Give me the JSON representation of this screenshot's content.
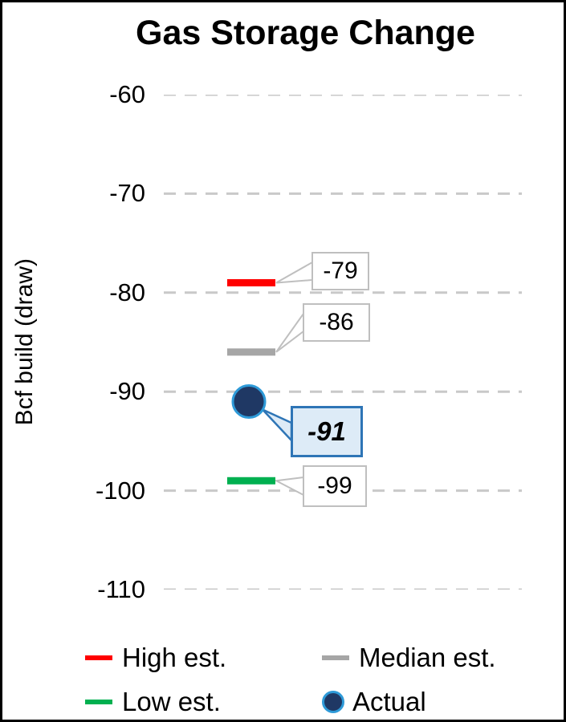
{
  "title": "Gas Storage Change",
  "chart_data": {
    "type": "scatter",
    "title": "Gas Storage Change",
    "ylabel": "Bcf build (draw)",
    "ylim": [
      -110,
      -60
    ],
    "yticks": [
      -60,
      -70,
      -80,
      -90,
      -100,
      -110
    ],
    "grid": "dashed-horizontal",
    "legend_position": "bottom",
    "series": [
      {
        "name": "High est.",
        "marker": "dash",
        "color": "#FF0000",
        "value": -79,
        "label": "-79"
      },
      {
        "name": "Median est.",
        "marker": "dash",
        "color": "#A6A6A6",
        "value": -86,
        "label": "-86"
      },
      {
        "name": "Actual",
        "marker": "circle",
        "color": "#1F3864",
        "value": -91,
        "label": "-91"
      },
      {
        "name": "Low est.",
        "marker": "dash",
        "color": "#00B050",
        "value": -99,
        "label": "-99"
      }
    ]
  },
  "legend": {
    "items": [
      {
        "label": "High est.",
        "marker": "dash",
        "color": "#FF0000"
      },
      {
        "label": "Median est.",
        "marker": "dash",
        "color": "#A6A6A6"
      },
      {
        "label": "Low est.",
        "marker": "dash",
        "color": "#00B050"
      },
      {
        "label": "Actual",
        "marker": "circle",
        "color": "#1F3864"
      }
    ]
  },
  "colors": {
    "gridline": "#C9C9C9",
    "callout_border": "#BFBFBF",
    "callout_fill": "#FFFFFF",
    "actual_callout_fill": "#DDEBF7",
    "actual_callout_border": "#2E75B6",
    "actual_ring": "#2E9AD8"
  }
}
